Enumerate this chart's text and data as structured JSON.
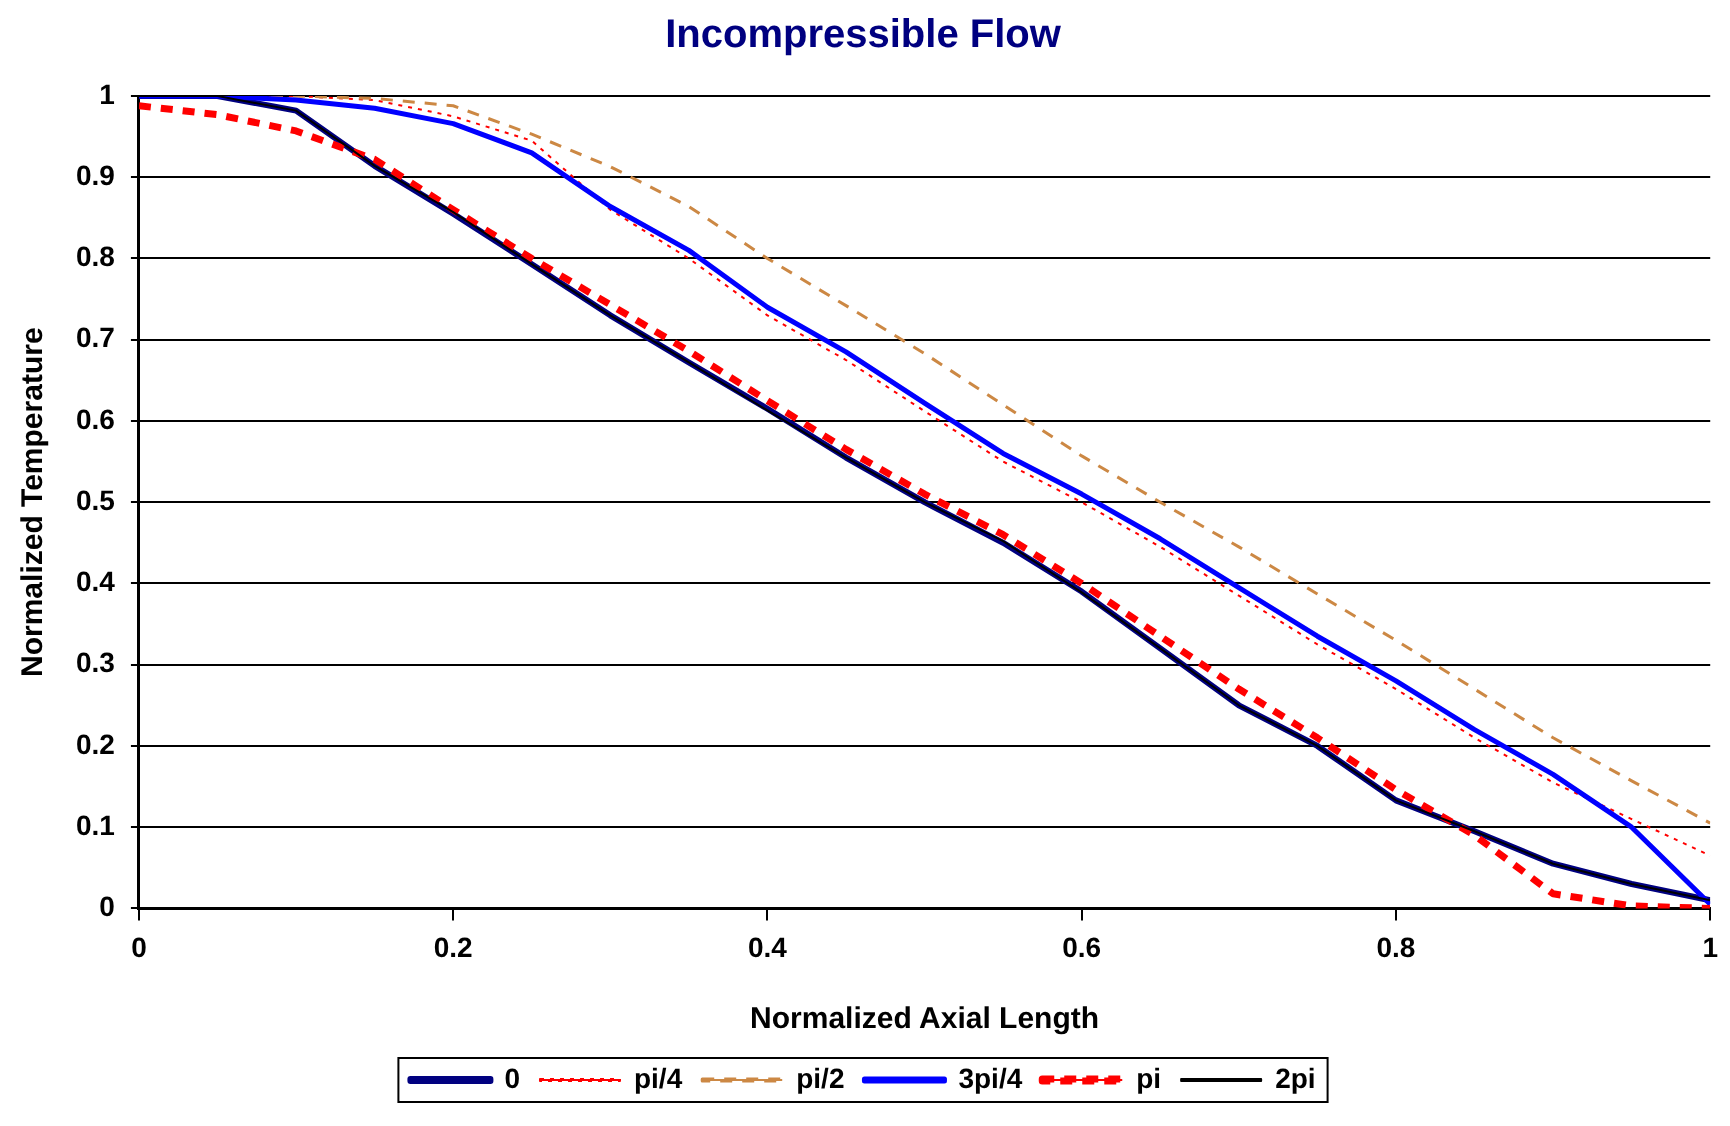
{
  "chart_data": {
    "type": "line",
    "title": "Incompressible Flow",
    "xlabel": "Normalized Axial Length",
    "ylabel": "Normalized Temperature",
    "x": [
      0,
      0.05,
      0.1,
      0.15,
      0.2,
      0.25,
      0.3,
      0.35,
      0.4,
      0.45,
      0.5,
      0.55,
      0.6,
      0.65,
      0.7,
      0.75,
      0.8,
      0.85,
      0.9,
      0.95,
      1
    ],
    "series": [
      {
        "name": "0",
        "color": "#000080",
        "line_style": "solid",
        "values": [
          1,
          1,
          0.982,
          0.914,
          0.855,
          0.793,
          0.73,
          0.672,
          0.615,
          0.555,
          0.5,
          0.45,
          0.39,
          0.32,
          0.25,
          0.2,
          0.133,
          0.095,
          0.055,
          0.03,
          0.01
        ]
      },
      {
        "name": "pi/4",
        "color": "#ff0000",
        "line_style": "dotted",
        "values": [
          1,
          1,
          1,
          0.995,
          0.975,
          0.945,
          0.86,
          0.8,
          0.73,
          0.675,
          0.612,
          0.55,
          0.5,
          0.445,
          0.385,
          0.325,
          0.27,
          0.21,
          0.155,
          0.11,
          0.065
        ]
      },
      {
        "name": "pi/2",
        "color": "#cc8844",
        "line_style": "dashed",
        "values": [
          1,
          1,
          1,
          0.997,
          0.988,
          0.953,
          0.913,
          0.864,
          0.8,
          0.742,
          0.683,
          0.62,
          0.557,
          0.5,
          0.445,
          0.387,
          0.33,
          0.27,
          0.21,
          0.157,
          0.105
        ]
      },
      {
        "name": "3pi/4",
        "color": "#0000ff",
        "line_style": "solid",
        "values": [
          1,
          1,
          0.995,
          0.985,
          0.966,
          0.93,
          0.864,
          0.81,
          0.74,
          0.685,
          0.622,
          0.56,
          0.51,
          0.455,
          0.395,
          0.335,
          0.28,
          0.22,
          0.165,
          0.1,
          0.005
        ]
      },
      {
        "name": "pi",
        "color": "#ff0000",
        "line_style": "dashed",
        "values": [
          0.988,
          0.977,
          0.957,
          0.922,
          0.86,
          0.8,
          0.743,
          0.686,
          0.625,
          0.565,
          0.51,
          0.46,
          0.4,
          0.335,
          0.27,
          0.21,
          0.146,
          0.09,
          0.018,
          0.003,
          0
        ]
      },
      {
        "name": "2pi",
        "color": "#000000",
        "line_style": "solid",
        "values": [
          1,
          1,
          0.982,
          0.914,
          0.857,
          0.793,
          0.73,
          0.672,
          0.613,
          0.555,
          0.5,
          0.452,
          0.389,
          0.32,
          0.25,
          0.2,
          0.133,
          0.095,
          0.055,
          0.03,
          0.01
        ]
      }
    ],
    "xlim": [
      0,
      1
    ],
    "xticks": [
      0,
      0.2,
      0.4,
      0.6,
      0.8,
      1
    ],
    "ylim": [
      0,
      1
    ],
    "yticks": [
      0,
      0.1,
      0.2,
      0.3,
      0.4,
      0.5,
      0.6,
      0.7,
      0.8,
      0.9,
      1
    ],
    "grid": "y",
    "legend": "bottom",
    "marker": "none"
  }
}
